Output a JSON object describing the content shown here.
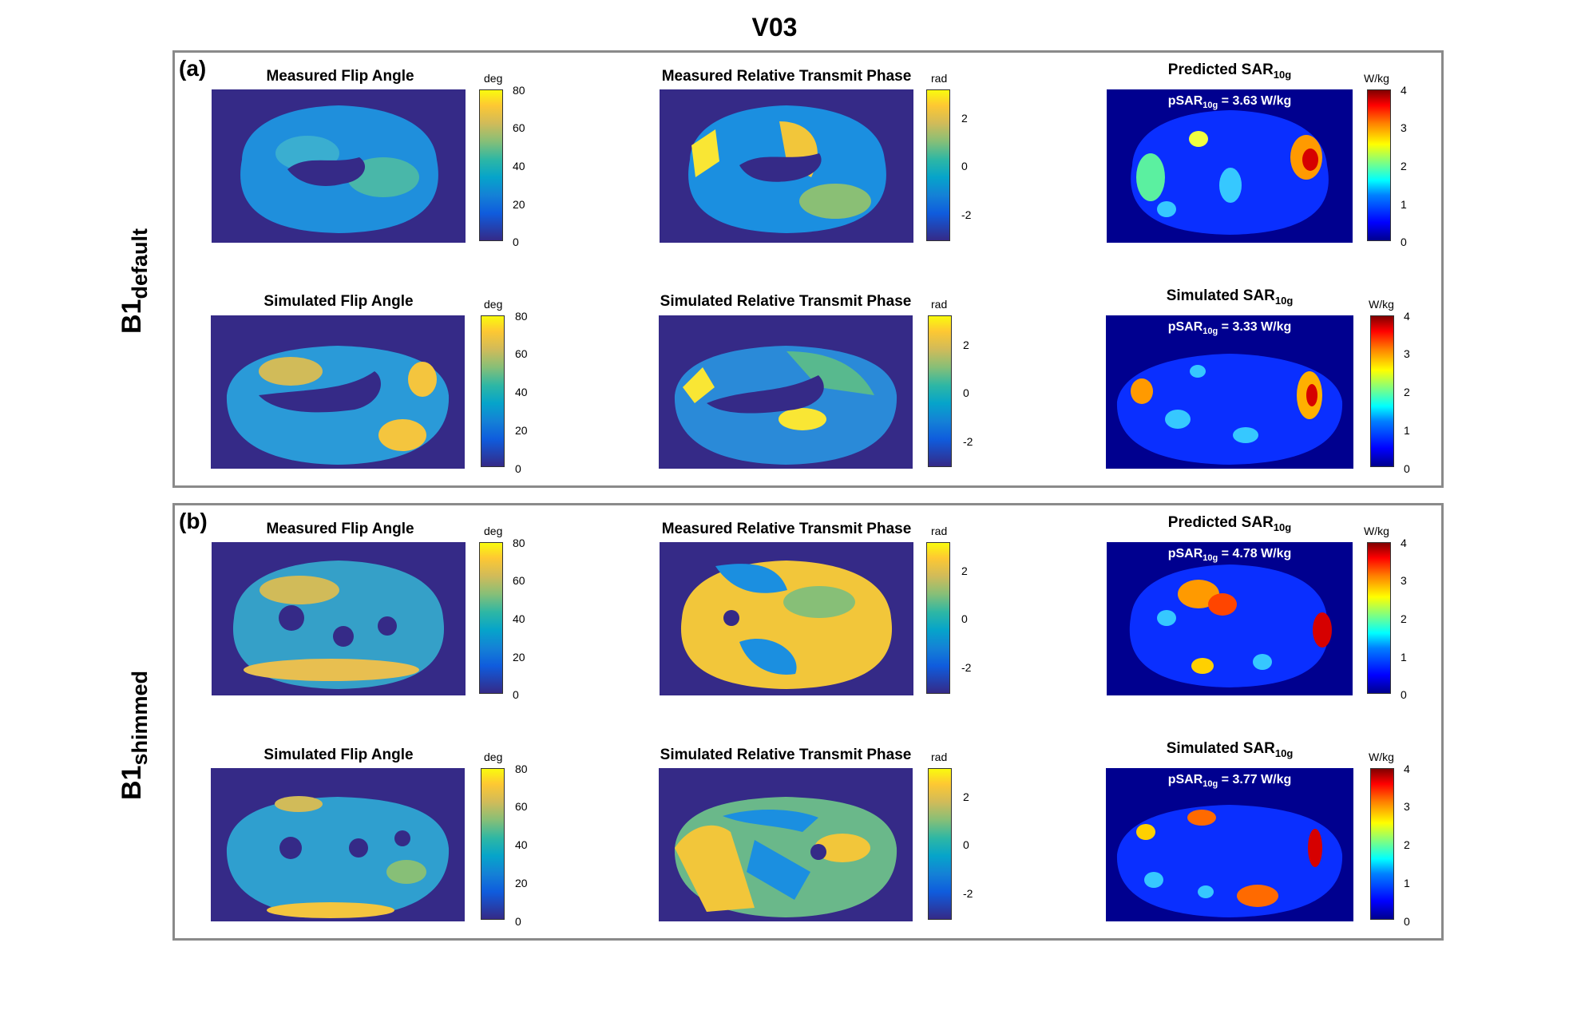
{
  "figure_title": "V03",
  "panels": [
    {
      "label": "(a)",
      "row_label_main": "B1",
      "row_label_sub": "default",
      "cells": [
        {
          "title": "Measured Flip Angle",
          "unit": "deg",
          "ticks": [
            "80",
            "60",
            "40",
            "20",
            "0"
          ],
          "colormap": "parula"
        },
        {
          "title": "Measured Relative Transmit Phase",
          "unit": "rad",
          "ticks": [
            "2",
            "0",
            "-2"
          ],
          "colormap": "parula"
        },
        {
          "title_main": "Predicted SAR",
          "title_sub": "10g",
          "unit": "W/kg",
          "ticks": [
            "4",
            "3",
            "2",
            "1",
            "0"
          ],
          "colormap": "jet",
          "inset_main": "pSAR",
          "inset_sub": "10g",
          "inset_value": " = 3.63 W/kg"
        },
        {
          "title": "Simulated Flip Angle",
          "unit": "deg",
          "ticks": [
            "80",
            "60",
            "40",
            "20",
            "0"
          ],
          "colormap": "parula"
        },
        {
          "title": "Simulated Relative Transmit Phase",
          "unit": "rad",
          "ticks": [
            "2",
            "0",
            "-2"
          ],
          "colormap": "parula"
        },
        {
          "title_main": "Simulated SAR",
          "title_sub": "10g",
          "unit": "W/kg",
          "ticks": [
            "4",
            "3",
            "2",
            "1",
            "0"
          ],
          "colormap": "jet",
          "inset_main": "pSAR",
          "inset_sub": "10g",
          "inset_value": " = 3.33 W/kg"
        }
      ]
    },
    {
      "label": "(b)",
      "row_label_main": "B1",
      "row_label_sub": "shimmed",
      "cells": [
        {
          "title": "Measured  Flip Angle",
          "unit": "deg",
          "ticks": [
            "80",
            "60",
            "40",
            "20",
            "0"
          ],
          "colormap": "parula"
        },
        {
          "title": "Measured Relative Transmit Phase",
          "unit": "rad",
          "ticks": [
            "2",
            "0",
            "-2"
          ],
          "colormap": "parula"
        },
        {
          "title_main": "Predicted SAR",
          "title_sub": "10g",
          "unit": "W/kg",
          "ticks": [
            "4",
            "3",
            "2",
            "1",
            "0"
          ],
          "colormap": "jet",
          "inset_main": "pSAR",
          "inset_sub": "10g",
          "inset_value": " = 4.78 W/kg"
        },
        {
          "title": "Simulated  Flip Angle",
          "unit": "deg",
          "ticks": [
            "80",
            "60",
            "40",
            "20",
            "0"
          ],
          "colormap": "parula"
        },
        {
          "title": "Simulated Relative Transmit Phase",
          "unit": "rad",
          "ticks": [
            "2",
            "0",
            "-2"
          ],
          "colormap": "parula"
        },
        {
          "title_main": "Simulated SAR",
          "title_sub": "10g",
          "unit": "W/kg",
          "ticks": [
            "4",
            "3",
            "2",
            "1",
            "0"
          ],
          "colormap": "jet",
          "inset_main": "pSAR",
          "inset_sub": "10g",
          "inset_value": " = 3.77 W/kg"
        }
      ]
    }
  ],
  "colors": {
    "parula_background": "#352a87",
    "jet_background": "#00008f",
    "panel_border": "#8a8a8a"
  }
}
